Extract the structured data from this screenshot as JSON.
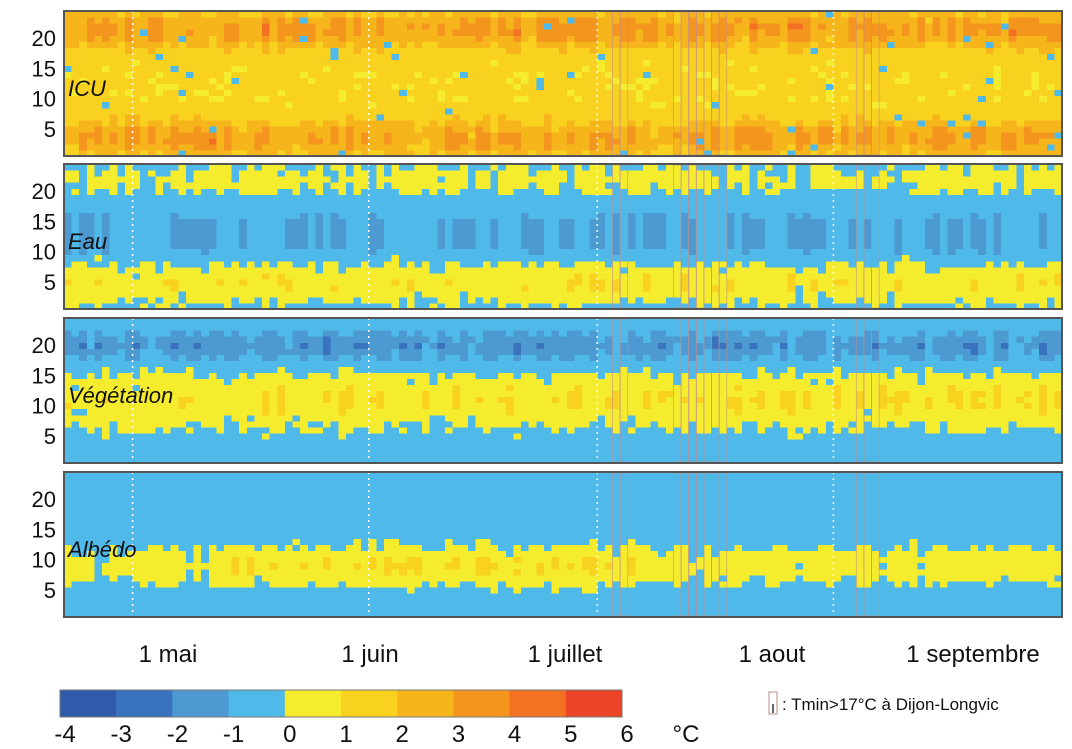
{
  "chart_data": [
    {
      "type": "heatmap",
      "title": "ICU",
      "xlabel": "",
      "ylabel": "",
      "y_ticks": [
        "5",
        "10",
        "15",
        "20"
      ],
      "ylim": [
        1,
        24
      ],
      "x_ticks": [
        "1 mai",
        "1 juin",
        "1 juillet",
        "1 aout",
        "1 septembre"
      ],
      "dominant_range": [
        0,
        2
      ],
      "pattern": "warm (0 to 3 °C) everywhere; strongest (3 to 5 °C) in the evening (hours 18-24) and early morning (hours 1-7)"
    },
    {
      "type": "heatmap",
      "title": "Eau",
      "xlabel": "",
      "ylabel": "",
      "y_ticks": [
        "5",
        "10",
        "15",
        "20"
      ],
      "ylim": [
        1,
        24
      ],
      "x_ticks": [
        "1 mai",
        "1 juin",
        "1 juillet",
        "1 aout",
        "1 septembre"
      ],
      "dominant_range": [
        -1,
        0
      ],
      "pattern": "mostly -1 to 0 °C; 0 to 1 °C during night hours (2-8 and 20-24); -2 to -1 °C patches around hours 10-17"
    },
    {
      "type": "heatmap",
      "title": "Végétation",
      "xlabel": "",
      "ylabel": "",
      "y_ticks": [
        "5",
        "10",
        "15",
        "20"
      ],
      "ylim": [
        1,
        24
      ],
      "x_ticks": [
        "1 mai",
        "1 juin",
        "1 juillet",
        "1 aout",
        "1 septembre"
      ],
      "dominant_range": [
        -1,
        0
      ],
      "pattern": "-2 to -1 °C around hours 18-23; 0 to 1 °C around hours 7-16"
    },
    {
      "type": "heatmap",
      "title": "Albédo",
      "xlabel": "",
      "ylabel": "",
      "y_ticks": [
        "5",
        "10",
        "15",
        "20"
      ],
      "ylim": [
        1,
        24
      ],
      "x_ticks": [
        "1 mai",
        "1 juin",
        "1 juillet",
        "1 aout",
        "1 septembre"
      ],
      "dominant_range": [
        -1,
        0
      ],
      "pattern": "mostly -1 to 0 °C; 0 to 1 °C around hours 6-14 (midday)"
    }
  ],
  "colorbar": {
    "ticks": [
      "-4",
      "-3",
      "-2",
      "-1",
      "0",
      "1",
      "2",
      "3",
      "4",
      "5",
      "6"
    ],
    "unit": "°C",
    "colors": [
      "#2f5bab",
      "#3a73bd",
      "#4d9ad3",
      "#4fb9ea",
      "#f5ec2e",
      "#f9d11f",
      "#f7b51c",
      "#f4961e",
      "#f27122",
      "#ec4426"
    ]
  },
  "marker_legend": {
    "icon": "rectangle-marker-icon",
    "text": ": Tmin>17°C à Dijon-Longvic"
  }
}
